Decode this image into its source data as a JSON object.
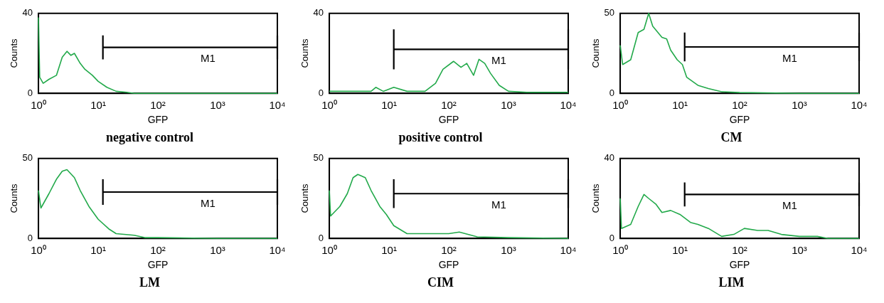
{
  "chart_data": [
    {
      "type": "line",
      "title": "negative control",
      "xlabel": "GFP",
      "ylabel": "Counts",
      "log": "x",
      "grid": false,
      "legend": false,
      "marker": "none",
      "series": [
        {
          "color": "#22a94a",
          "x": [
            1,
            1.05,
            1.2,
            1.5,
            2,
            2.5,
            3,
            3.5,
            4,
            5,
            6,
            8,
            10,
            14,
            20,
            30,
            40,
            100,
            10000
          ],
          "values": [
            38,
            8,
            5,
            7,
            9,
            18,
            21,
            19,
            20,
            15,
            12,
            9,
            6,
            3,
            1,
            0.5,
            0,
            0,
            0
          ]
        },
        {
          "name": "M1",
          "color": "#000000",
          "x": [
            12,
            10000
          ],
          "values": [
            23,
            23
          ],
          "errors": [
            6,
            6
          ]
        }
      ],
      "xlim": [
        1,
        10000
      ],
      "xticks": [
        {
          "value": 1,
          "label": "10⁰"
        },
        {
          "value": 10,
          "label": "10¹"
        },
        {
          "value": 100,
          "label": "10²"
        },
        {
          "value": 1000,
          "label": "10³"
        },
        {
          "value": 10000,
          "label": "10⁴"
        }
      ],
      "ylim": [
        0,
        40
      ],
      "yticks": [
        0,
        40
      ]
    },
    {
      "type": "line",
      "title": "positive control",
      "xlabel": "GFP",
      "ylabel": "Counts",
      "log": "x",
      "grid": false,
      "legend": false,
      "marker": "none",
      "series": [
        {
          "color": "#22a94a",
          "x": [
            1,
            5,
            6,
            8,
            12,
            20,
            40,
            60,
            80,
            120,
            160,
            200,
            260,
            320,
            400,
            500,
            700,
            1000,
            2000,
            10000
          ],
          "values": [
            1,
            1,
            3,
            1,
            3,
            1,
            1,
            5,
            12,
            16,
            13,
            15,
            9,
            17,
            15,
            10,
            4,
            1,
            0.5,
            0.5
          ]
        },
        {
          "name": "M1",
          "color": "#000000",
          "x": [
            12,
            10000
          ],
          "values": [
            22,
            22
          ],
          "errors": [
            10,
            10
          ]
        }
      ],
      "xlim": [
        1,
        10000
      ],
      "xticks": [
        {
          "value": 1,
          "label": "10⁰"
        },
        {
          "value": 10,
          "label": "10¹"
        },
        {
          "value": 100,
          "label": "10²"
        },
        {
          "value": 1000,
          "label": "10³"
        },
        {
          "value": 10000,
          "label": "10⁴"
        }
      ],
      "ylim": [
        0,
        40
      ],
      "yticks": [
        0,
        40
      ]
    },
    {
      "type": "line",
      "title": "CM",
      "xlabel": "GFP",
      "ylabel": "Counts",
      "log": "x",
      "grid": false,
      "legend": false,
      "marker": "none",
      "series": [
        {
          "color": "#22a94a",
          "x": [
            1,
            1.1,
            1.5,
            2,
            2.5,
            3,
            3.5,
            5,
            6,
            7,
            9,
            11,
            13,
            20,
            30,
            50,
            100,
            1000,
            10000
          ],
          "values": [
            30,
            18,
            21,
            38,
            40,
            50,
            42,
            35,
            34,
            27,
            21,
            18,
            10,
            5,
            3,
            1,
            0.5,
            0,
            0
          ]
        },
        {
          "name": "M1",
          "color": "#000000",
          "x": [
            12,
            10000
          ],
          "values": [
            29,
            29
          ],
          "errors": [
            9,
            9
          ]
        }
      ],
      "xlim": [
        1,
        10000
      ],
      "xticks": [
        {
          "value": 1,
          "label": "10⁰"
        },
        {
          "value": 10,
          "label": "10¹"
        },
        {
          "value": 100,
          "label": "10²"
        },
        {
          "value": 1000,
          "label": "10³"
        },
        {
          "value": 10000,
          "label": "10⁴"
        }
      ],
      "ylim": [
        0,
        50
      ],
      "yticks": [
        0,
        50
      ]
    },
    {
      "type": "line",
      "title": "LM",
      "xlabel": "GFP",
      "ylabel": "Counts",
      "log": "x",
      "grid": false,
      "legend": false,
      "marker": "none",
      "series": [
        {
          "color": "#22a94a",
          "x": [
            1,
            1.1,
            1.5,
            2,
            2.5,
            3,
            4,
            5,
            7,
            10,
            15,
            20,
            40,
            60,
            100,
            1000,
            10000
          ],
          "values": [
            30,
            19,
            28,
            37,
            42,
            43,
            38,
            30,
            20,
            12,
            6,
            3,
            2,
            0.5,
            0.5,
            0,
            0
          ]
        },
        {
          "name": "M1",
          "color": "#000000",
          "x": [
            12,
            10000
          ],
          "values": [
            29,
            29
          ],
          "errors": [
            8,
            8
          ]
        }
      ],
      "xlim": [
        1,
        10000
      ],
      "xticks": [
        {
          "value": 1,
          "label": "10⁰"
        },
        {
          "value": 10,
          "label": "10¹"
        },
        {
          "value": 100,
          "label": "10²"
        },
        {
          "value": 1000,
          "label": "10³"
        },
        {
          "value": 10000,
          "label": "10⁴"
        }
      ],
      "ylim": [
        0,
        50
      ],
      "yticks": [
        0,
        50
      ]
    },
    {
      "type": "line",
      "title": "CIM",
      "xlabel": "GFP",
      "ylabel": "Counts",
      "log": "x",
      "grid": false,
      "legend": false,
      "marker": "none",
      "series": [
        {
          "color": "#22a94a",
          "x": [
            1,
            1.05,
            1.5,
            2,
            2.5,
            3,
            4,
            5,
            7,
            9,
            12,
            20,
            40,
            100,
            150,
            300,
            1000,
            10000
          ],
          "values": [
            30,
            14,
            20,
            28,
            38,
            40,
            38,
            30,
            20,
            15,
            8,
            3,
            3,
            3,
            4,
            1,
            0.5,
            0
          ]
        },
        {
          "name": "M1",
          "color": "#000000",
          "x": [
            12,
            10000
          ],
          "values": [
            28,
            28
          ],
          "errors": [
            9,
            9
          ]
        }
      ],
      "xlim": [
        1,
        10000
      ],
      "xticks": [
        {
          "value": 1,
          "label": "10⁰"
        },
        {
          "value": 10,
          "label": "10¹"
        },
        {
          "value": 100,
          "label": "10²"
        },
        {
          "value": 1000,
          "label": "10³"
        },
        {
          "value": 10000,
          "label": "10⁴"
        }
      ],
      "ylim": [
        0,
        50
      ],
      "yticks": [
        0,
        50
      ]
    },
    {
      "type": "line",
      "title": "LIM",
      "xlabel": "GFP",
      "ylabel": "Counts",
      "log": "x",
      "grid": false,
      "legend": false,
      "marker": "none",
      "series": [
        {
          "color": "#22a94a",
          "x": [
            1,
            1.05,
            1.5,
            2,
            2.5,
            3,
            4,
            5,
            7,
            10,
            15,
            20,
            30,
            50,
            80,
            120,
            200,
            300,
            500,
            1000,
            2000,
            3000,
            10000
          ],
          "values": [
            20,
            5,
            7,
            16,
            22,
            20,
            17,
            13,
            14,
            12,
            8,
            7,
            5,
            1,
            2,
            5,
            4,
            4,
            2,
            1,
            1,
            0,
            0
          ]
        },
        {
          "name": "M1",
          "color": "#000000",
          "x": [
            12,
            10000
          ],
          "values": [
            22,
            22
          ],
          "errors": [
            6,
            6
          ]
        }
      ],
      "xlim": [
        1,
        10000
      ],
      "xticks": [
        {
          "value": 1,
          "label": "10⁰"
        },
        {
          "value": 10,
          "label": "10¹"
        },
        {
          "value": 100,
          "label": "10²"
        },
        {
          "value": 1000,
          "label": "10³"
        },
        {
          "value": 10000,
          "label": "10⁴"
        }
      ],
      "ylim": [
        0,
        40
      ],
      "yticks": [
        0,
        40
      ]
    }
  ]
}
